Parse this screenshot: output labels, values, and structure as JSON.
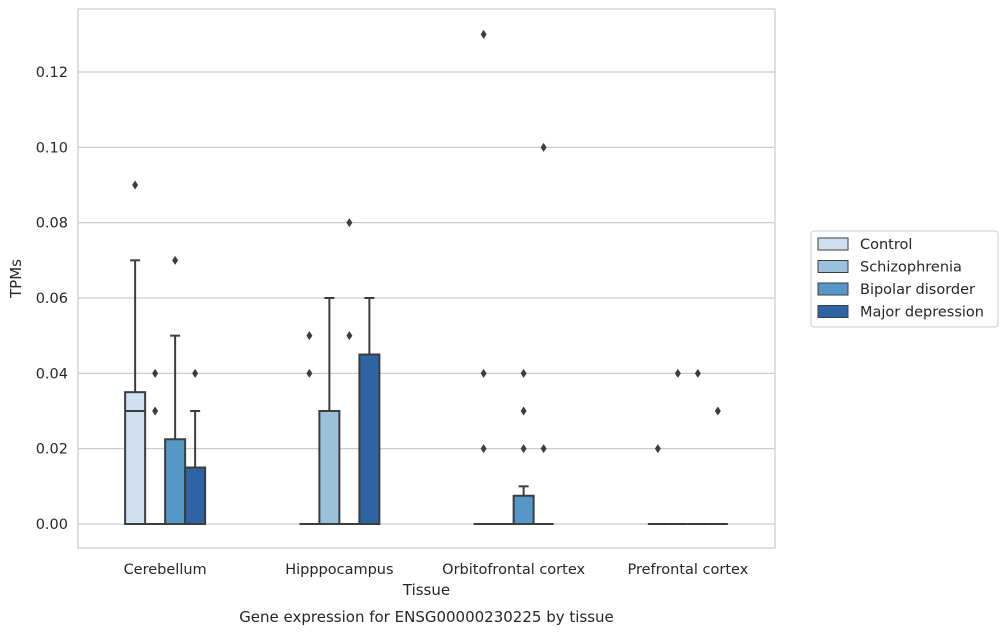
{
  "chart_data": {
    "type": "boxplot",
    "title": "",
    "xlabel": "Tissue",
    "ylabel": "TPMs",
    "caption": "Gene expression for ENSG00000230225 by tissue",
    "ylim": [
      -0.0065,
      0.1365
    ],
    "yticks": [
      "0.00",
      "0.02",
      "0.04",
      "0.06",
      "0.08",
      "0.10",
      "0.12"
    ],
    "grid": true,
    "legend_position": "right",
    "categories": [
      "Cerebellum",
      "Hipppocampus",
      "Orbitofrontal cortex",
      "Prefrontal cortex"
    ],
    "series": [
      {
        "name": "Control",
        "color": "#cfe0f1",
        "boxes": [
          {
            "q1": 0.0,
            "median": 0.03,
            "q3": 0.035,
            "whisker_low": 0.0,
            "whisker_high": 0.07,
            "outliers": [
              0.09
            ]
          },
          {
            "q1": 0.0,
            "median": 0.0,
            "q3": 0.0,
            "whisker_low": 0.0,
            "whisker_high": 0.0,
            "outliers": [
              0.04,
              0.05
            ]
          },
          {
            "q1": 0.0,
            "median": 0.0,
            "q3": 0.0,
            "whisker_low": 0.0,
            "whisker_high": 0.0,
            "outliers": [
              0.02,
              0.04,
              0.13
            ]
          },
          {
            "q1": 0.0,
            "median": 0.0,
            "q3": 0.0,
            "whisker_low": 0.0,
            "whisker_high": 0.0,
            "outliers": [
              0.02
            ]
          }
        ]
      },
      {
        "name": "Schizophrenia",
        "color": "#9ac0db",
        "boxes": [
          {
            "q1": 0.0,
            "median": 0.0,
            "q3": 0.0,
            "whisker_low": 0.0,
            "whisker_high": 0.0,
            "outliers": [
              0.03,
              0.04
            ]
          },
          {
            "q1": 0.0,
            "median": 0.0,
            "q3": 0.03,
            "whisker_low": 0.0,
            "whisker_high": 0.06,
            "outliers": []
          },
          {
            "q1": 0.0,
            "median": 0.0,
            "q3": 0.0,
            "whisker_low": 0.0,
            "whisker_high": 0.0,
            "outliers": []
          },
          {
            "q1": 0.0,
            "median": 0.0,
            "q3": 0.0,
            "whisker_low": 0.0,
            "whisker_high": 0.0,
            "outliers": [
              0.04
            ]
          }
        ]
      },
      {
        "name": "Bipolar disorder",
        "color": "#5597c6",
        "boxes": [
          {
            "q1": 0.0,
            "median": 0.0,
            "q3": 0.0225,
            "whisker_low": 0.0,
            "whisker_high": 0.05,
            "outliers": [
              0.07
            ]
          },
          {
            "q1": 0.0,
            "median": 0.0,
            "q3": 0.0,
            "whisker_low": 0.0,
            "whisker_high": 0.0,
            "outliers": [
              0.05,
              0.08
            ]
          },
          {
            "q1": 0.0,
            "median": 0.0,
            "q3": 0.0075,
            "whisker_low": 0.0,
            "whisker_high": 0.01,
            "outliers": [
              0.02,
              0.03,
              0.04
            ]
          },
          {
            "q1": 0.0,
            "median": 0.0,
            "q3": 0.0,
            "whisker_low": 0.0,
            "whisker_high": 0.0,
            "outliers": [
              0.04
            ]
          }
        ]
      },
      {
        "name": "Major depression",
        "color": "#2d65a4",
        "boxes": [
          {
            "q1": 0.0,
            "median": 0.0,
            "q3": 0.015,
            "whisker_low": 0.0,
            "whisker_high": 0.03,
            "outliers": [
              0.04
            ]
          },
          {
            "q1": 0.0,
            "median": 0.0,
            "q3": 0.045,
            "whisker_low": 0.0,
            "whisker_high": 0.06,
            "outliers": []
          },
          {
            "q1": 0.0,
            "median": 0.0,
            "q3": 0.0,
            "whisker_low": 0.0,
            "whisker_high": 0.0,
            "outliers": [
              0.02,
              0.1
            ]
          },
          {
            "q1": 0.0,
            "median": 0.0,
            "q3": 0.0,
            "whisker_low": 0.0,
            "whisker_high": 0.0,
            "outliers": [
              0.03
            ]
          }
        ]
      }
    ]
  }
}
